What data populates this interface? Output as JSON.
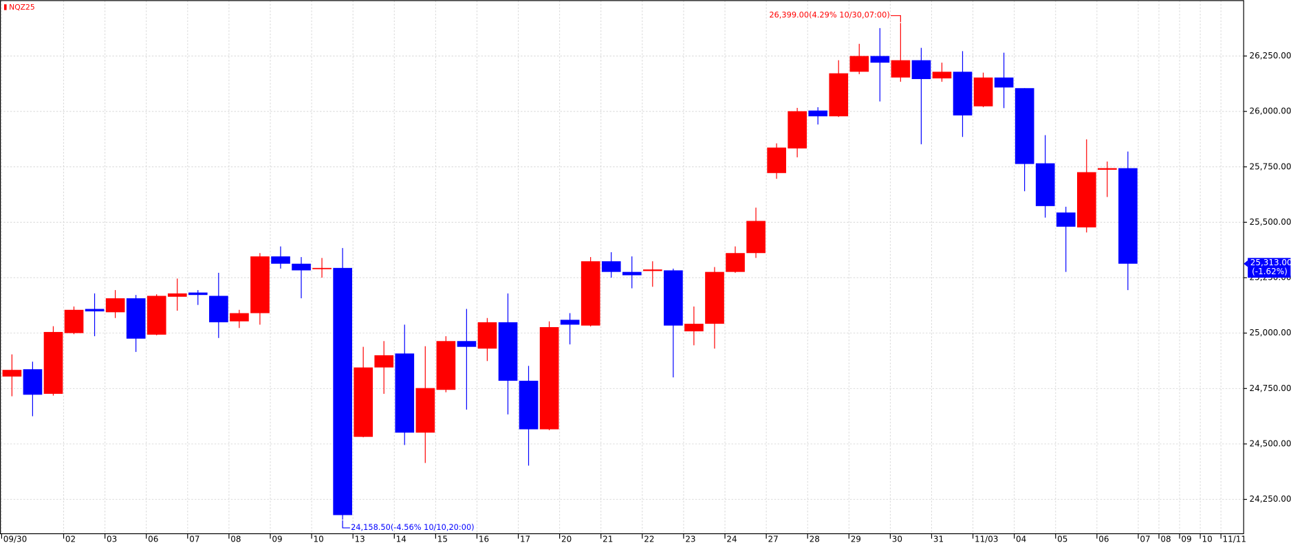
{
  "chart_data": {
    "type": "candlestick",
    "title": "NQZ25",
    "up_color": "#ff0000",
    "down_color": "#0000ff",
    "grid": true,
    "categories": [
      "09/30",
      null,
      null,
      "02",
      null,
      "03",
      null,
      "06",
      null,
      "07",
      null,
      "08",
      null,
      "09",
      null,
      "10",
      null,
      "13",
      null,
      "14",
      null,
      "15",
      null,
      "16",
      null,
      "17",
      null,
      "20",
      null,
      "21",
      null,
      "22",
      null,
      "23",
      null,
      "24",
      null,
      "27",
      null,
      "28",
      null,
      "29",
      null,
      "30",
      null,
      "31",
      null,
      "11/03",
      null,
      "04",
      null,
      "05",
      null,
      "06",
      null,
      "07",
      "08",
      "09",
      "10",
      "11/11"
    ],
    "open": [
      24804,
      24837,
      24726,
      25000,
      25109,
      25094,
      25157,
      24993,
      25164,
      25183,
      25168,
      25053,
      25090,
      25346,
      25313,
      25291,
      25294,
      24532,
      24845,
      24908,
      24551,
      24744,
      24964,
      24930,
      25049,
      24785,
      24566,
      25060,
      25034,
      25324,
      25276,
      25280,
      25283,
      25008,
      25042,
      25276,
      25361,
      25722,
      25833,
      26004,
      25978,
      26179,
      26250,
      26153,
      26231,
      26149,
      26179,
      26023,
      26153,
      26105,
      25766,
      25544,
      25477,
      25737,
      25744,
      null,
      null,
      null,
      null,
      null
    ],
    "high": [
      24904,
      24871,
      25031,
      25120,
      25179,
      25194,
      25172,
      25175,
      25246,
      25194,
      25272,
      25105,
      25361,
      25391,
      25343,
      25339,
      25384,
      24938,
      24964,
      25038,
      24941,
      24986,
      25109,
      25068,
      25179,
      24852,
      25053,
      25090,
      25343,
      25365,
      25346,
      25324,
      25291,
      25120,
      25298,
      25391,
      25566,
      25856,
      26016,
      26019,
      26231,
      26305,
      26376,
      26399,
      26287,
      26220,
      26272,
      26175,
      26265,
      26105,
      25893,
      25570,
      25874,
      25774,
      25819,
      null,
      null,
      null,
      null,
      null
    ],
    "low": [
      24715,
      24625,
      24718,
      24995,
      24986,
      25068,
      24915,
      24990,
      25101,
      25127,
      24978,
      25023,
      25038,
      25291,
      25157,
      25250,
      24158.5,
      24530,
      24726,
      24495,
      24414,
      24733,
      24655,
      24874,
      24633,
      24402,
      24562,
      24949,
      25030,
      25250,
      25202,
      25209,
      24800,
      24945,
      24930,
      25272,
      25339,
      25696,
      25793,
      25941,
      25975,
      26168,
      26045,
      26134,
      25852,
      26134,
      25885,
      26019,
      26015,
      25640,
      25521,
      25276,
      25454,
      25614,
      25194,
      null,
      null,
      null,
      null,
      null
    ],
    "close": [
      24834,
      24722,
      25005,
      25105,
      25098,
      25157,
      24975,
      25168,
      25179,
      25172,
      25049,
      25090,
      25346,
      25313,
      25283,
      25294,
      24179,
      24845,
      24900,
      24551,
      24752,
      24964,
      24938,
      25049,
      24785,
      24566,
      25027,
      25038,
      25324,
      25276,
      25261,
      25287,
      25034,
      25042,
      25276,
      25361,
      25506,
      25837,
      26001,
      25978,
      26172,
      26250,
      26220,
      26231,
      26146,
      26179,
      25982,
      26153,
      26108,
      25763,
      25573,
      25480,
      25726,
      25744,
      25313,
      null,
      null,
      null,
      null,
      null
    ],
    "ylim": [
      24095,
      26500
    ],
    "yticks": [
      {
        "value": 24250,
        "label": "24,250.00"
      },
      {
        "value": 24500,
        "label": "24,500.00"
      },
      {
        "value": 24750,
        "label": "24,750.00"
      },
      {
        "value": 25000,
        "label": "25,000.00"
      },
      {
        "value": 25250,
        "label": "25,250.00"
      },
      {
        "value": 25500,
        "label": "25,500.00"
      },
      {
        "value": 25750,
        "label": "25,750.00"
      },
      {
        "value": 26000,
        "label": "26,000.00"
      },
      {
        "value": 26250,
        "label": "26,250.00"
      }
    ],
    "high_label": "26,399.00(4.29% 10/30,07:00)",
    "low_label": "24,158.50(-4.56% 10/10,20:00)",
    "last_price_label": "25,313.00",
    "last_change_label": "(-1.62%)"
  }
}
